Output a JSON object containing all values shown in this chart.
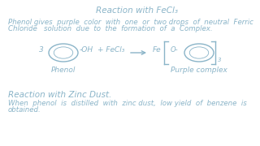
{
  "bg_color": "#ffffff",
  "text_color": "#8ab4c8",
  "title1": "Reaction with FeCl₃",
  "desc1_line1": "Phenol gives  purple  color  with  one  or  two drops  of  neutral  Ferric",
  "desc1_line2": "Chloride   solution  due  to  the  formation  of  a  Complex.",
  "rxn_label1": "Phenol",
  "rxn_label2": "Purple complex",
  "title2": "Reaction with Zinc Dust.",
  "desc2_line1": "When  phenol  is  distilled  with  zinc dust,  low yield  of  benzene  is",
  "desc2_line2": "obtained.",
  "font_size_title": 7.5,
  "font_size_desc": 6.2,
  "font_size_label": 6.5,
  "font_size_rxn": 6.5
}
